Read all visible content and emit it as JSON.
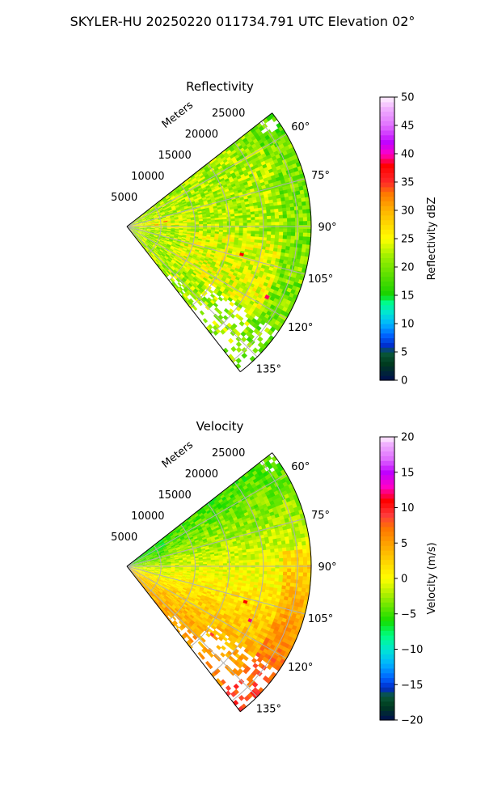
{
  "figure_title": "SKYLER-HU  20250220  011734.791 UTC Elevation 02°",
  "range_axis_label": "Meters",
  "chart_data": [
    {
      "type": "heatmap",
      "title": "Reflectivity",
      "projection": "polar-sector",
      "azimuth_range_deg": [
        52,
        142
      ],
      "azimuth_ticks": [
        "60°",
        "75°",
        "90°",
        "105°",
        "120°",
        "135°"
      ],
      "azimuth_tick_values": [
        60,
        75,
        90,
        105,
        120,
        135
      ],
      "range_ticks": [
        5000,
        10000,
        15000,
        20000,
        25000
      ],
      "range_tick_labels": [
        "5000",
        "10000",
        "15000",
        "20000",
        "25000"
      ],
      "range_max": 27000,
      "range_axis_label": "Meters",
      "colorbar": {
        "label": "Reflectivity dBZ",
        "min": 0,
        "max": 50,
        "ticks": [
          0,
          5,
          10,
          15,
          20,
          25,
          30,
          35,
          40,
          45,
          50
        ],
        "tick_labels": [
          "0",
          "5",
          "10",
          "15",
          "20",
          "25",
          "30",
          "35",
          "40",
          "45",
          "50"
        ]
      },
      "field_summary": "mostly 20-30 dBZ with values up to ~35 dBZ near the radar around 80-90°"
    },
    {
      "type": "heatmap",
      "title": "Velocity",
      "projection": "polar-sector",
      "azimuth_range_deg": [
        52,
        142
      ],
      "azimuth_ticks": [
        "60°",
        "75°",
        "90°",
        "105°",
        "120°",
        "135°"
      ],
      "azimuth_tick_values": [
        60,
        75,
        90,
        105,
        120,
        135
      ],
      "range_ticks": [
        5000,
        10000,
        15000,
        20000,
        25000
      ],
      "range_tick_labels": [
        "5000",
        "10000",
        "15000",
        "20000",
        "25000"
      ],
      "range_max": 27000,
      "range_axis_label": "Meters",
      "colorbar": {
        "label": "Velocity (m/s)",
        "min": -20,
        "max": 20,
        "ticks": [
          -20,
          -15,
          -10,
          -5,
          0,
          5,
          10,
          15,
          20
        ],
        "tick_labels": [
          "−20",
          "−15",
          "−10",
          "−5",
          "0",
          "5",
          "10",
          "15",
          "20"
        ]
      },
      "field_summary": "about -4 m/s toward the northeast sector, rising to about +6 m/s toward the southeast"
    }
  ],
  "colors": {
    "grid": "#b0b0b0",
    "axis": "#000000"
  }
}
